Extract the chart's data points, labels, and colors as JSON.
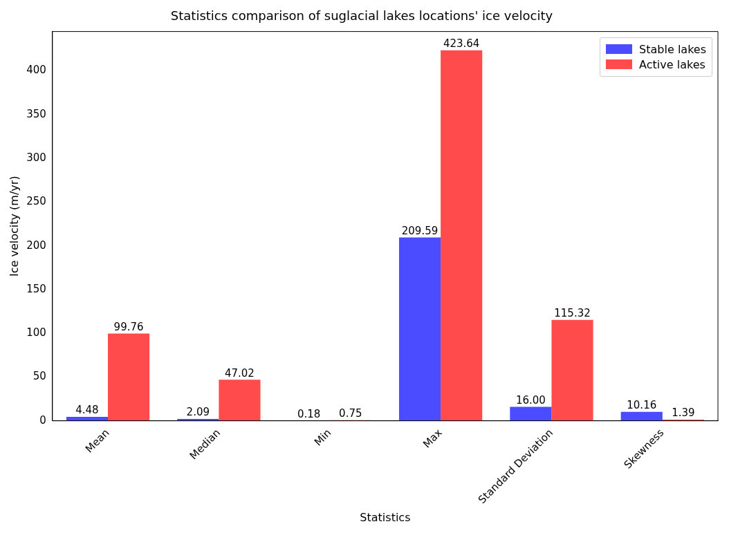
{
  "chart_data": {
    "type": "bar",
    "title": "Statistics comparison of suglacial lakes locations' ice velocity",
    "xlabel": "Statistics",
    "ylabel": "Ice velocity (m/yr)",
    "categories": [
      "Mean",
      "Median",
      "Min",
      "Max",
      "Standard Deviation",
      "Skewness"
    ],
    "series": [
      {
        "name": "Stable lakes",
        "color": "#4b4bff",
        "values": [
          4.48,
          2.09,
          0.18,
          209.59,
          16.0,
          10.16
        ],
        "value_labels": [
          "4.48",
          "2.09",
          "0.18",
          "209.59",
          "16.00",
          "10.16"
        ]
      },
      {
        "name": "Active lakes",
        "color": "#ff4b4b",
        "values": [
          99.76,
          47.02,
          0.75,
          423.64,
          115.32,
          1.39
        ],
        "value_labels": [
          "99.76",
          "47.02",
          "0.75",
          "423.64",
          "115.32",
          "1.39"
        ]
      }
    ],
    "ylim": [
      0,
      445
    ],
    "yticks": [
      0,
      50,
      100,
      150,
      200,
      250,
      300,
      350,
      400
    ],
    "grid": false,
    "legend": "top right"
  }
}
